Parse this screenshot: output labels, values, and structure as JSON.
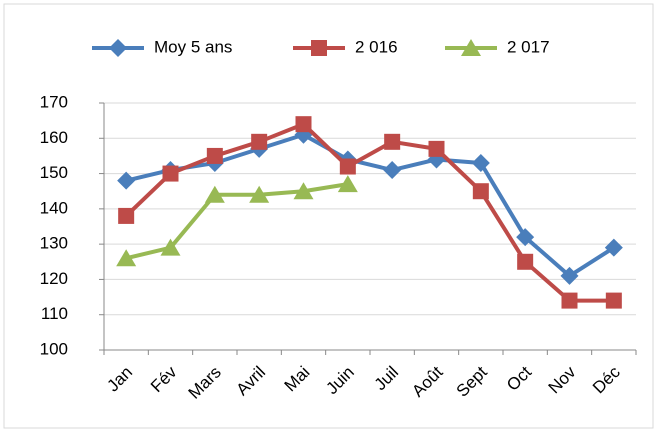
{
  "chart_data": {
    "type": "line",
    "categories": [
      "Jan",
      "Fév",
      "Mars",
      "Avril",
      "Mai",
      "Juin",
      "Juil",
      "Août",
      "Sept",
      "Oct",
      "Nov",
      "Déc"
    ],
    "series": [
      {
        "name": "Moy 5 ans",
        "color": "#4a7ebb",
        "marker": "diamond",
        "values": [
          148,
          151,
          153,
          157,
          161,
          154,
          151,
          154,
          153,
          132,
          121,
          129
        ]
      },
      {
        "name": "2 016",
        "color": "#be4b48",
        "marker": "square",
        "values": [
          138,
          150,
          155,
          159,
          164,
          152,
          159,
          157,
          145,
          125,
          114,
          114
        ]
      },
      {
        "name": "2 017",
        "color": "#98b954",
        "marker": "triangle",
        "values": [
          126,
          129,
          144,
          144,
          145,
          147,
          null,
          null,
          null,
          null,
          null,
          null
        ]
      }
    ],
    "ylim": [
      100,
      170
    ],
    "yticks": [
      100,
      110,
      120,
      130,
      140,
      150,
      160,
      170
    ],
    "grid": true,
    "legend": "top"
  }
}
